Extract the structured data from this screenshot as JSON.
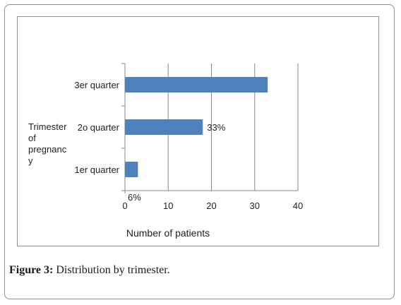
{
  "chart_data": {
    "type": "bar",
    "orientation": "horizontal",
    "categories": [
      "1er quarter",
      "2o quarter",
      "3er quarter"
    ],
    "values": [
      3,
      18,
      33
    ],
    "data_labels": [
      "6%",
      "33%",
      ""
    ],
    "xlabel": "Number of patients",
    "ylabel": "Trimester of pregnancy",
    "ylabel_lines": [
      "Trimester",
      "of",
      "pregnanc",
      "y"
    ],
    "xlim": [
      0,
      40
    ],
    "xticks": [
      "0",
      "10",
      "20",
      "30",
      "40"
    ],
    "grid": "vertical",
    "bar_color": "#4f81bd"
  },
  "caption": {
    "label": "Figure 3:",
    "text": " Distribution by trimester."
  }
}
